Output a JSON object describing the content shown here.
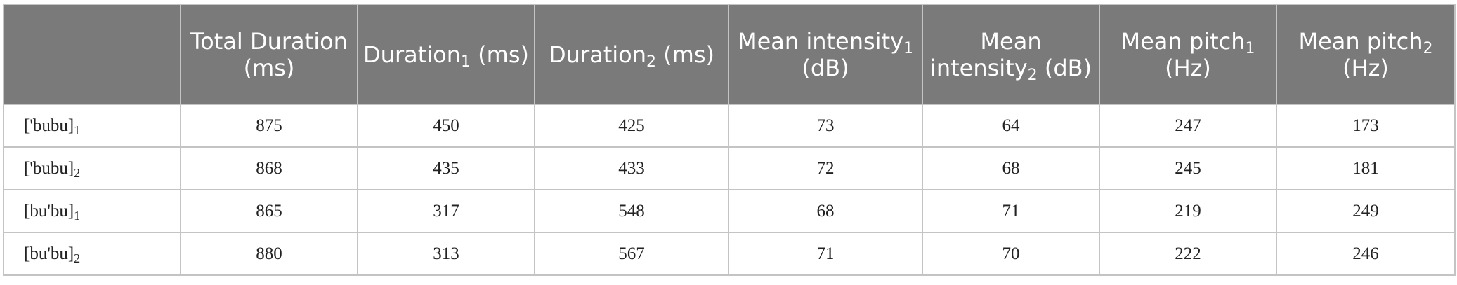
{
  "table": {
    "headers": [
      {
        "text": "",
        "sub": "",
        "after": ""
      },
      {
        "text": "Total Duration (ms)",
        "sub": "",
        "after": ""
      },
      {
        "text": "Duration",
        "sub": "1",
        "after": " (ms)"
      },
      {
        "text": "Duration",
        "sub": "2",
        "after": " (ms)"
      },
      {
        "text": "Mean intensity",
        "sub": "1",
        "after": " (dB)"
      },
      {
        "text": "Mean intensity",
        "sub": "2",
        "after": " (dB)"
      },
      {
        "text": "Mean pitch",
        "sub": "1",
        "after": " (Hz)"
      },
      {
        "text": "Mean pitch",
        "sub": "2",
        "after": " (Hz)"
      }
    ],
    "rows": [
      {
        "label": "['bubu]",
        "sub": "1",
        "values": [
          "875",
          "450",
          "425",
          "73",
          "64",
          "247",
          "173"
        ]
      },
      {
        "label": "['bubu]",
        "sub": "2",
        "values": [
          "868",
          "435",
          "433",
          "72",
          "68",
          "245",
          "181"
        ]
      },
      {
        "label": "[bu'bu]",
        "sub": "1",
        "values": [
          "865",
          "317",
          "548",
          "68",
          "71",
          "219",
          "249"
        ]
      },
      {
        "label": "[bu'bu]",
        "sub": "2",
        "values": [
          "880",
          "313",
          "567",
          "71",
          "70",
          "222",
          "246"
        ]
      }
    ]
  }
}
